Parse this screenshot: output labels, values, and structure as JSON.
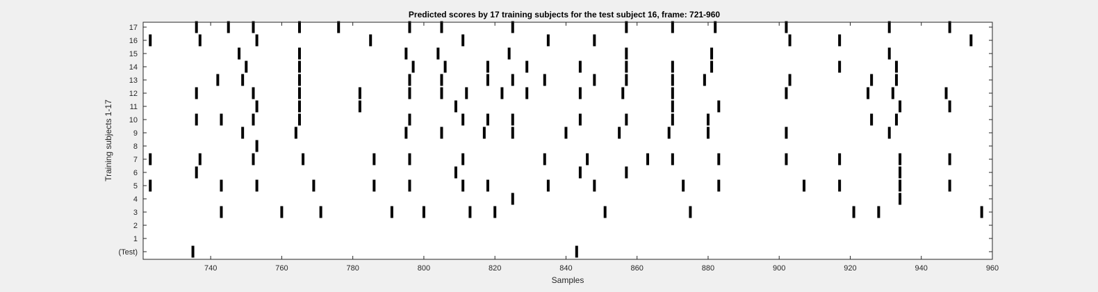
{
  "chart_data": {
    "type": "raster",
    "title": "Predicted scores by 17 training subjects for the test subject 16, frame: 721-960",
    "xlabel": "Samples",
    "ylabel": "Training subjects 1-17",
    "xlim": [
      721,
      960
    ],
    "xticks": [
      740,
      760,
      780,
      800,
      820,
      840,
      860,
      880,
      900,
      920,
      940,
      960
    ],
    "rows": [
      "(Test)",
      "1",
      "2",
      "3",
      "4",
      "5",
      "6",
      "7",
      "8",
      "9",
      "10",
      "11",
      "12",
      "13",
      "14",
      "15",
      "16",
      "17"
    ],
    "grid": false,
    "series": [
      {
        "row": "(Test)",
        "samples": [
          735,
          843
        ]
      },
      {
        "row": "1",
        "samples": []
      },
      {
        "row": "2",
        "samples": []
      },
      {
        "row": "3",
        "samples": [
          743,
          760,
          771,
          791,
          800,
          813,
          820,
          851,
          875,
          921,
          928,
          957
        ]
      },
      {
        "row": "4",
        "samples": [
          825,
          934
        ]
      },
      {
        "row": "5",
        "samples": [
          723,
          743,
          753,
          769,
          786,
          796,
          811,
          818,
          835,
          848,
          873,
          883,
          907,
          917,
          934,
          948
        ]
      },
      {
        "row": "6",
        "samples": [
          736,
          809,
          844,
          857,
          934
        ]
      },
      {
        "row": "7",
        "samples": [
          723,
          737,
          752,
          766,
          786,
          796,
          811,
          834,
          846,
          863,
          870,
          883,
          902,
          917,
          934,
          948
        ]
      },
      {
        "row": "8",
        "samples": [
          753
        ]
      },
      {
        "row": "9",
        "samples": [
          749,
          764,
          795,
          805,
          817,
          825,
          840,
          855,
          869,
          880,
          902,
          931
        ]
      },
      {
        "row": "10",
        "samples": [
          736,
          743,
          752,
          765,
          796,
          811,
          818,
          825,
          844,
          857,
          870,
          880,
          926,
          933
        ]
      },
      {
        "row": "11",
        "samples": [
          753,
          765,
          782,
          809,
          870,
          883,
          934,
          948
        ]
      },
      {
        "row": "12",
        "samples": [
          736,
          752,
          765,
          782,
          796,
          805,
          812,
          822,
          829,
          844,
          856,
          870,
          902,
          925,
          932,
          947
        ]
      },
      {
        "row": "13",
        "samples": [
          742,
          749,
          765,
          796,
          805,
          818,
          825,
          834,
          848,
          857,
          870,
          879,
          903,
          926,
          933
        ]
      },
      {
        "row": "14",
        "samples": [
          750,
          765,
          797,
          806,
          818,
          829,
          844,
          857,
          870,
          881,
          917,
          933
        ]
      },
      {
        "row": "15",
        "samples": [
          748,
          765,
          795,
          804,
          824,
          857,
          881,
          931
        ]
      },
      {
        "row": "16",
        "samples": [
          723,
          737,
          753,
          785,
          811,
          835,
          848,
          903,
          917,
          954
        ]
      },
      {
        "row": "17",
        "samples": [
          736,
          745,
          752,
          765,
          776,
          796,
          805,
          825,
          857,
          870,
          882,
          902,
          931,
          948
        ]
      }
    ]
  }
}
